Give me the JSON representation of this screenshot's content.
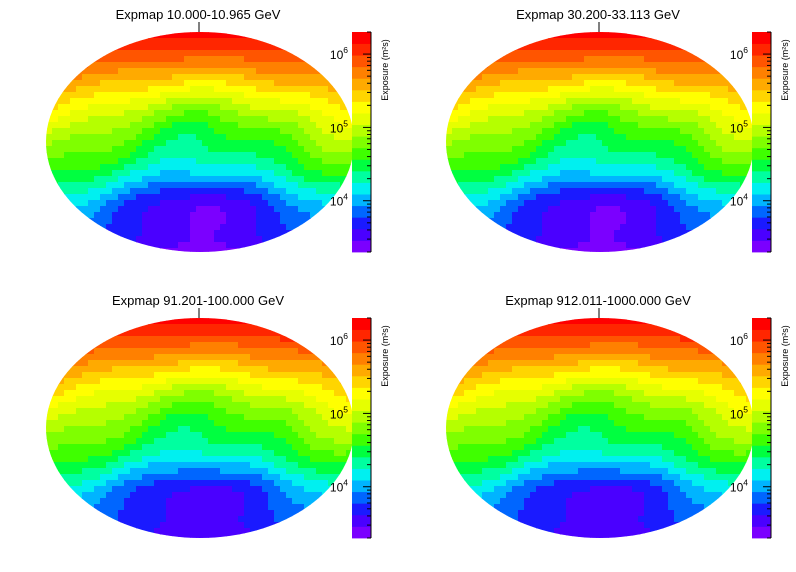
{
  "chart_data": [
    {
      "type": "heatmap",
      "projection": "aitoff-ellipse",
      "title": "Expmap 10.000-10.965 GeV",
      "colorbar": {
        "label": "Exposure (m²s)",
        "scale": "log",
        "ticks": [
          {
            "base": "10",
            "exp": "4",
            "value": 10000
          },
          {
            "base": "10",
            "exp": "5",
            "value": 100000
          },
          {
            "base": "10",
            "exp": "6",
            "value": 1000000
          }
        ],
        "range": [
          2000,
          2000000
        ]
      },
      "exposure_profile": {
        "min": 2500,
        "max": 1800000,
        "peak_region": "top (north)",
        "minimum_region": "bottom edge (south)"
      }
    },
    {
      "type": "heatmap",
      "projection": "aitoff-ellipse",
      "title": "Expmap 30.200-33.113 GeV",
      "colorbar": {
        "label": "Exposure (m²s)",
        "scale": "log",
        "ticks": [
          {
            "base": "10",
            "exp": "4",
            "value": 10000
          },
          {
            "base": "10",
            "exp": "5",
            "value": 100000
          },
          {
            "base": "10",
            "exp": "6",
            "value": 1000000
          }
        ],
        "range": [
          2000,
          2000000
        ]
      },
      "exposure_profile": {
        "min": 2500,
        "max": 1800000,
        "peak_region": "top (north)",
        "minimum_region": "bottom edge (south)"
      }
    },
    {
      "type": "heatmap",
      "projection": "aitoff-ellipse",
      "title": "Expmap 91.201-100.000 GeV",
      "colorbar": {
        "label": "Exposure (m²s)",
        "scale": "log",
        "ticks": [
          {
            "base": "10",
            "exp": "4",
            "value": 10000
          },
          {
            "base": "10",
            "exp": "5",
            "value": 100000
          },
          {
            "base": "10",
            "exp": "6",
            "value": 1000000
          }
        ],
        "range": [
          2000,
          2000000
        ]
      },
      "exposure_profile": {
        "min": 3000,
        "max": 1800000,
        "peak_region": "top (north)",
        "minimum_region": "bottom edge (south)"
      }
    },
    {
      "type": "heatmap",
      "projection": "aitoff-ellipse",
      "title": "Expmap 912.011-1000.000 GeV",
      "colorbar": {
        "label": "Exposure (m²s)",
        "scale": "log",
        "ticks": [
          {
            "base": "10",
            "exp": "4",
            "value": 10000
          },
          {
            "base": "10",
            "exp": "5",
            "value": 100000
          },
          {
            "base": "10",
            "exp": "6",
            "value": 1000000
          }
        ],
        "range": [
          2000,
          2000000
        ]
      },
      "exposure_profile": {
        "min": 3000,
        "max": 1800000,
        "peak_region": "top (north)",
        "minimum_region": "bottom edge (south)"
      }
    }
  ],
  "colors": [
    "#7b00ff",
    "#4a00ff",
    "#1a1aff",
    "#0066ff",
    "#00b4ff",
    "#00f0f0",
    "#00ffa0",
    "#00ff40",
    "#3fff00",
    "#7fff00",
    "#b5ff00",
    "#e6ff00",
    "#ffff00",
    "#ffd500",
    "#ffaa00",
    "#ff8000",
    "#ff5500",
    "#ff2600",
    "#ff0000"
  ]
}
